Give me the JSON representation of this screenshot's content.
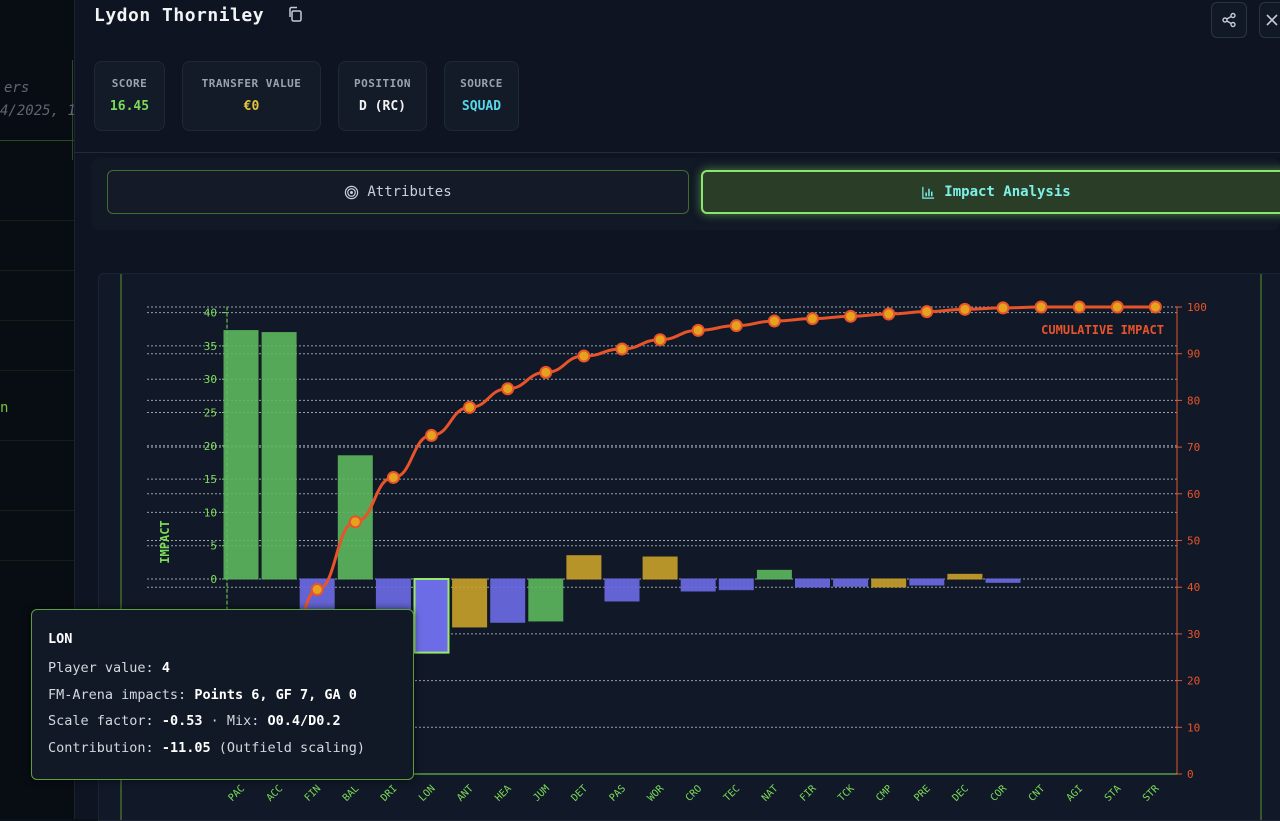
{
  "background": {
    "fragments": [
      "ers",
      "4/2025, 1",
      "n"
    ]
  },
  "player": {
    "name": "Lydon Thorniley"
  },
  "stats": [
    {
      "label": "SCORE",
      "value": "16.45",
      "color": "#7bdc58"
    },
    {
      "label": "TRANSFER VALUE",
      "value": "€0",
      "color": "#e4c43a"
    },
    {
      "label": "POSITION",
      "value": "D (RC)",
      "color": "#f1f3f5"
    },
    {
      "label": "SOURCE",
      "value": "SQUAD",
      "color": "#55d7e8"
    }
  ],
  "tabs": [
    {
      "label": "Attributes",
      "active": false,
      "icon": "target-icon"
    },
    {
      "label": "Impact Analysis",
      "active": true,
      "icon": "bar-chart-icon"
    }
  ],
  "chart_data": {
    "type": "bar",
    "ylabel": "IMPACT",
    "y2label": "CUMULATIVE IMPACT",
    "ylim": [
      -30,
      40
    ],
    "y2lim": [
      0,
      100
    ],
    "yticks": [
      0,
      5,
      10,
      15,
      20,
      25,
      30,
      35,
      40
    ],
    "y2ticks": [
      0,
      10,
      20,
      30,
      40,
      50,
      60,
      70,
      80,
      90,
      100
    ],
    "grid": true,
    "categories": [
      "PAC",
      "ACC",
      "FIN",
      "BAL",
      "DRI",
      "LON",
      "ANT",
      "HEA",
      "JUM",
      "DET",
      "PAS",
      "WOR",
      "CRO",
      "TEC",
      "NAT",
      "FIR",
      "TCK",
      "CMP",
      "PRE",
      "DEC",
      "COR",
      "CNT",
      "AGI",
      "STA",
      "STR"
    ],
    "series": [
      {
        "type": "bar",
        "values": [
          37.3,
          37.0,
          -8.5,
          18.5,
          -8.5,
          -11.05,
          -7.2,
          -6.5,
          -6.3,
          3.5,
          -3.3,
          3.3,
          -1.8,
          -1.6,
          1.3,
          -1.2,
          -1.1,
          -1.2,
          -0.9,
          0.7,
          -0.5,
          0,
          0,
          0,
          0
        ],
        "colors": [
          "#5db85d",
          "#5db85d",
          "#6c6ce6",
          "#5db85d",
          "#6c6ce6",
          "#6c6ce6",
          "#c9a22a",
          "#6c6ce6",
          "#5db85d",
          "#c9a22a",
          "#6c6ce6",
          "#c9a22a",
          "#6c6ce6",
          "#6c6ce6",
          "#5db85d",
          "#6c6ce6",
          "#6c6ce6",
          "#c9a22a",
          "#6c6ce6",
          "#c9a22a",
          "#6c6ce6",
          "#6c6ce6",
          "#6c6ce6",
          "#6c6ce6",
          "#6c6ce6"
        ]
      },
      {
        "type": "line",
        "axis": "right",
        "values": [
          8,
          16,
          39.5,
          54,
          63.5,
          72.5,
          78.5,
          82.5,
          86,
          89.5,
          91,
          93,
          95,
          96,
          97,
          97.5,
          98,
          98.5,
          99,
          99.5,
          99.8,
          100,
          100,
          100,
          100
        ],
        "color": "#e8542a"
      }
    ],
    "highlight_index": 5
  },
  "tooltip": {
    "title": "LON",
    "player_value_label": "Player value:",
    "player_value": "4",
    "impacts_label": "FM-Arena impacts:",
    "impacts": "Points 6, GF 7, GA 0",
    "scale_label": "Scale factor:",
    "scale": "-0.53",
    "mix_label": "· Mix:",
    "mix": "O0.4/D0.2",
    "contribution_label": "Contribution:",
    "contribution": "-11.05",
    "contribution_note": "(Outfield scaling)"
  }
}
